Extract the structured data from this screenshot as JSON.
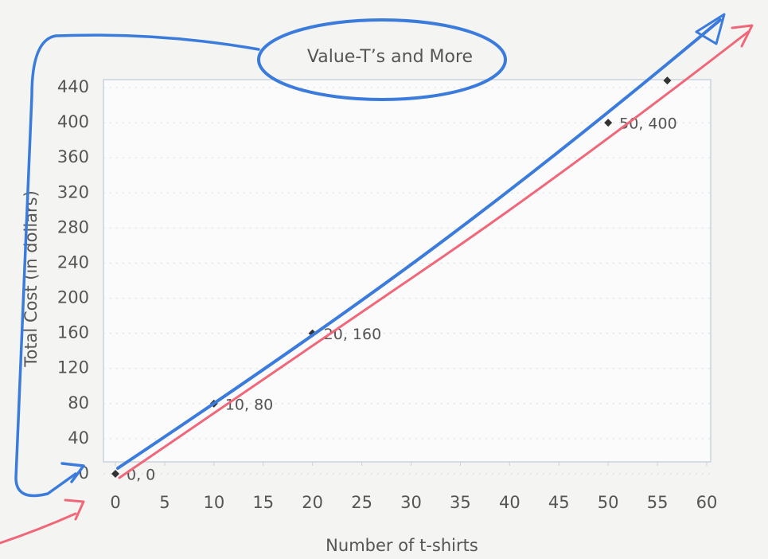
{
  "chart_data": {
    "type": "scatter",
    "title": "Value-T’s and More",
    "x_label": "Number of t-shirts",
    "y_label": "Total Cost (in dollars)",
    "x": [
      0,
      10,
      20,
      50,
      56
    ],
    "values": [
      0,
      80,
      160,
      400,
      448
    ],
    "value_labels": [
      "0, 0",
      "10, 80",
      "20, 160",
      "50, 400",
      null
    ],
    "color": "#333333",
    "xlim": [
      0,
      60
    ],
    "xticks": [
      0,
      5,
      10,
      15,
      20,
      25,
      30,
      35,
      40,
      45,
      50,
      55,
      60
    ],
    "ylim": [
      0,
      440
    ],
    "yticks": [
      0,
      40,
      80,
      120,
      160,
      200,
      240,
      280,
      320,
      360,
      400,
      440
    ],
    "grid": true
  }
}
